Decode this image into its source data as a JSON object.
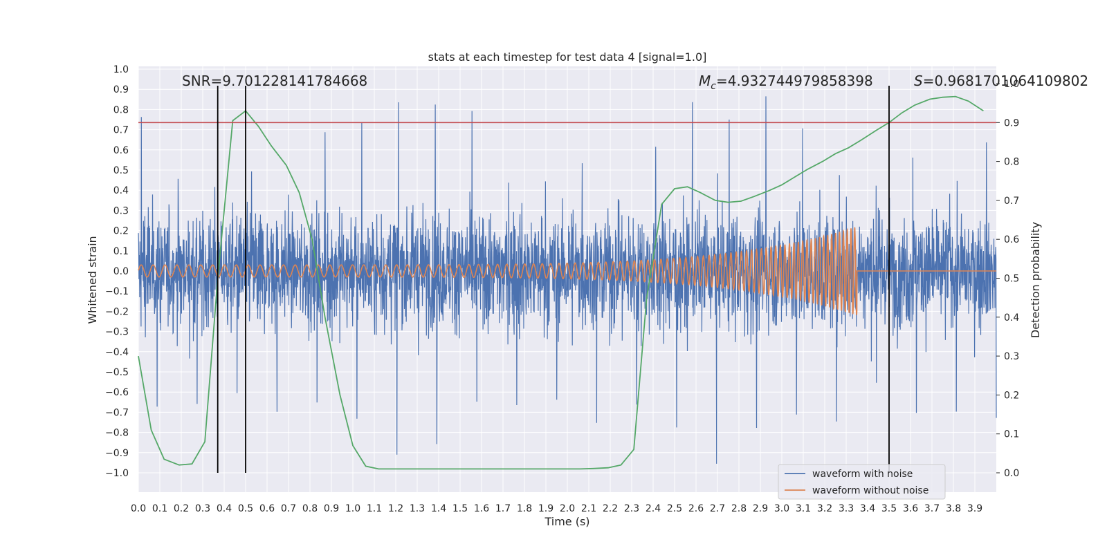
{
  "chart_data": {
    "type": "line",
    "title": "stats at each timestep for test data 4 [signal=1.0]",
    "xlabel": "Time (s)",
    "ylabel": "Whitened strain",
    "y2label": "Detection probability",
    "xlim": [
      0.0,
      4.0
    ],
    "ylim": [
      -1.0,
      1.0
    ],
    "y2lim": [
      0.0,
      1.0
    ],
    "x_ticks": [
      "0.0",
      "0.1",
      "0.2",
      "0.3",
      "0.4",
      "0.5",
      "0.6",
      "0.7",
      "0.8",
      "0.9",
      "1.0",
      "1.1",
      "1.2",
      "1.3",
      "1.4",
      "1.5",
      "1.6",
      "1.7",
      "1.8",
      "1.9",
      "2.0",
      "2.1",
      "2.2",
      "2.3",
      "2.4",
      "2.5",
      "2.6",
      "2.7",
      "2.8",
      "2.9",
      "3.0",
      "3.1",
      "3.2",
      "3.3",
      "3.4",
      "3.5",
      "3.6",
      "3.7",
      "3.8",
      "3.9"
    ],
    "y_ticks": [
      "1.0",
      "0.9",
      "0.8",
      "0.7",
      "0.6",
      "0.5",
      "0.4",
      "0.3",
      "0.2",
      "0.1",
      "0.0",
      "−0.1",
      "−0.2",
      "−0.3",
      "−0.4",
      "−0.5",
      "−0.6",
      "−0.7",
      "−0.8",
      "−0.9",
      "−1.0"
    ],
    "y2_ticks": [
      "0.0",
      "0.1",
      "0.2",
      "0.3",
      "0.4",
      "0.5",
      "0.6",
      "0.7",
      "0.8",
      "0.9",
      "1.0"
    ],
    "grid": true,
    "legend_position": "lower-right",
    "annotations": {
      "snr": "SNR=9.701228141784668",
      "mc_symbol": "M",
      "mc_sub": "c",
      "mc_value": "=4.932744979858398",
      "s_symbol": "S",
      "s_value": "=0.9681701064109802"
    },
    "vertical_lines_x": [
      0.37,
      0.5,
      3.5
    ],
    "threshold_y2": 0.9,
    "series": [
      {
        "name": "waveform with noise",
        "color": "#4c72b0",
        "kind": "noise",
        "envelope_peak_values": [
          0.81,
          0.5,
          0.48,
          0.57,
          0.41,
          0.7,
          0.84,
          0.84,
          0.91
        ],
        "envelope_trough_values": [
          -0.73,
          -0.76,
          -0.65,
          -0.79,
          -0.7,
          -0.79,
          -0.98,
          -0.88
        ]
      },
      {
        "name": "waveform without noise",
        "color": "#dd8452",
        "kind": "chirp",
        "x_end": 3.35,
        "amp_start": 0.03,
        "amp_end": 0.22,
        "y_after_end": 0.0
      },
      {
        "color": "#55a868",
        "axis": "y2",
        "kind": "detection-probability",
        "x": [
          0.0,
          0.06,
          0.12,
          0.19,
          0.25,
          0.31,
          0.37,
          0.44,
          0.5,
          0.56,
          0.62,
          0.69,
          0.75,
          0.81,
          0.87,
          0.94,
          1.0,
          1.06,
          1.12,
          1.19,
          1.25,
          1.31,
          1.37,
          1.44,
          1.5,
          1.56,
          1.62,
          1.69,
          1.75,
          1.81,
          1.87,
          1.94,
          2.0,
          2.06,
          2.12,
          2.19,
          2.25,
          2.31,
          2.37,
          2.44,
          2.5,
          2.56,
          2.62,
          2.69,
          2.75,
          2.81,
          2.87,
          2.94,
          3.0,
          3.06,
          3.12,
          3.19,
          3.25,
          3.31,
          3.37,
          3.44,
          3.5,
          3.56,
          3.62,
          3.69,
          3.75,
          3.81,
          3.87,
          3.94
        ],
        "y": [
          0.3,
          0.11,
          0.035,
          0.02,
          0.023,
          0.08,
          0.5,
          0.905,
          0.93,
          0.89,
          0.84,
          0.79,
          0.72,
          0.6,
          0.4,
          0.2,
          0.07,
          0.017,
          0.01,
          0.01,
          0.01,
          0.01,
          0.01,
          0.01,
          0.01,
          0.01,
          0.01,
          0.01,
          0.01,
          0.01,
          0.01,
          0.01,
          0.01,
          0.01,
          0.011,
          0.013,
          0.02,
          0.06,
          0.45,
          0.69,
          0.73,
          0.735,
          0.72,
          0.7,
          0.695,
          0.698,
          0.71,
          0.725,
          0.74,
          0.76,
          0.78,
          0.8,
          0.82,
          0.835,
          0.855,
          0.88,
          0.9,
          0.925,
          0.945,
          0.96,
          0.965,
          0.967,
          0.955,
          0.93
        ]
      }
    ]
  }
}
